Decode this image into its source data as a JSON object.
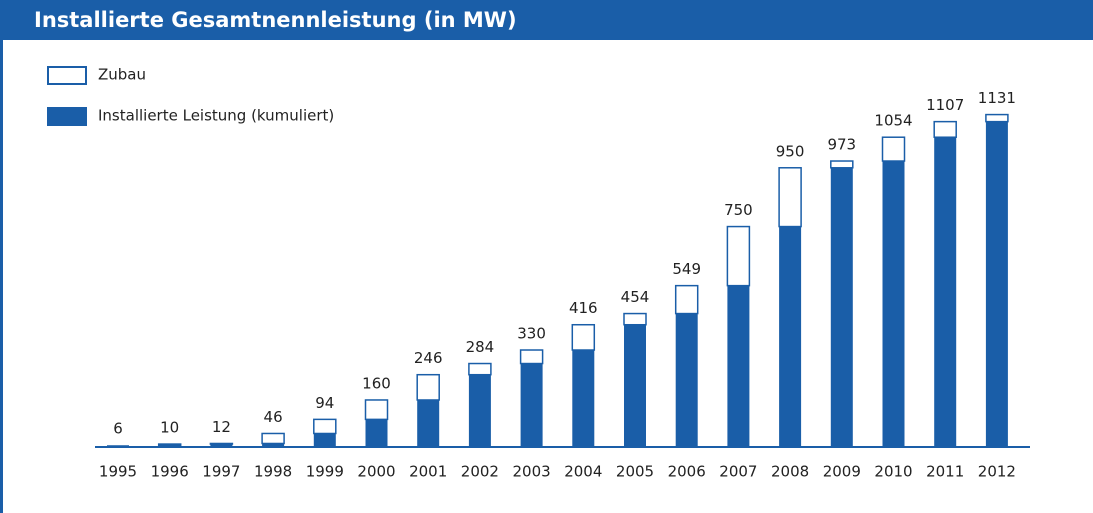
{
  "chart_data": {
    "type": "stacked_bar",
    "title": "Installierte Gesamtnennleistung (in MW)",
    "categories": [
      "1995",
      "1996",
      "1997",
      "1998",
      "1999",
      "2000",
      "2001",
      "2002",
      "2003",
      "2004",
      "2005",
      "2006",
      "2007",
      "2008",
      "2009",
      "2010",
      "2011",
      "2012"
    ],
    "series": [
      {
        "name": "Zubau",
        "color": "#ffffff",
        "values": [
          0,
          4,
          2,
          34,
          48,
          66,
          86,
          38,
          46,
          86,
          38,
          95,
          201,
          200,
          23,
          81,
          53,
          24
        ]
      },
      {
        "name": "Installierte Leistung (kumuliert)",
        "color": "#1a5ea8",
        "values": [
          6,
          6,
          10,
          12,
          46,
          94,
          160,
          246,
          284,
          330,
          416,
          454,
          549,
          750,
          950,
          973,
          1054,
          1107
        ]
      }
    ],
    "totals": [
      6,
      10,
      12,
      46,
      94,
      160,
      246,
      284,
      330,
      416,
      454,
      549,
      750,
      950,
      973,
      1054,
      1107,
      1131
    ],
    "ylim": [
      0,
      1150
    ]
  }
}
